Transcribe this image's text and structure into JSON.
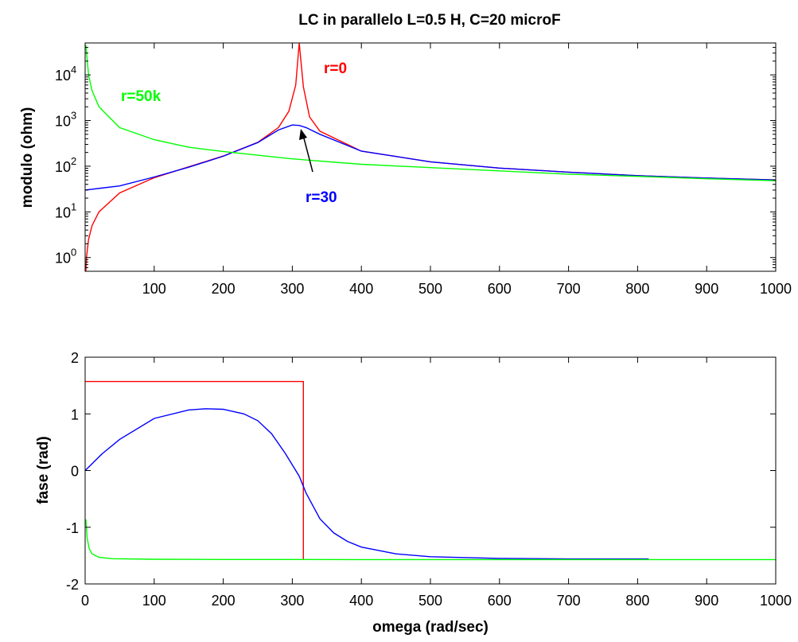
{
  "figure": {
    "title": "LC in parallelo L=0.5 H, C=20 microF"
  },
  "chart_data": [
    {
      "type": "line",
      "title": "LC in parallelo L=0.5 H, C=20 microF",
      "xlabel": "",
      "ylabel": "modulo (ohm)",
      "xlim": [
        0,
        1000
      ],
      "yscale": "log",
      "ylim": [
        0.5,
        50000
      ],
      "xticks": [
        100,
        200,
        300,
        400,
        500,
        600,
        700,
        800,
        900,
        1000
      ],
      "yticks": [
        1,
        10,
        100,
        1000,
        10000
      ],
      "ytick_labels": [
        {
          "base": "10",
          "exp": "0"
        },
        {
          "base": "10",
          "exp": "1"
        },
        {
          "base": "10",
          "exp": "2"
        },
        {
          "base": "10",
          "exp": "3"
        },
        {
          "base": "10",
          "exp": "4"
        }
      ],
      "grid": false,
      "series": [
        {
          "name": "r=0",
          "color": "#ff0000",
          "x": [
            1,
            2,
            5,
            10,
            20,
            50,
            100,
            150,
            200,
            250,
            280,
            295,
            305,
            310,
            316,
            325,
            340,
            400,
            500,
            600,
            700,
            800,
            900,
            1000
          ],
          "y": [
            0.5,
            1,
            2.5,
            5,
            10,
            26,
            56,
            97,
            167,
            333,
            702,
            1600,
            6000,
            50000,
            5500,
            1200,
            585,
            214,
            125,
            91,
            74,
            62,
            55,
            50
          ]
        },
        {
          "name": "r=30",
          "color": "#0000ff",
          "x": [
            0,
            50,
            100,
            150,
            200,
            250,
            280,
            300,
            310,
            320,
            340,
            400,
            500,
            600,
            700,
            800,
            900,
            1000
          ],
          "y": [
            30,
            37,
            58,
            95,
            165,
            330,
            620,
            800,
            780,
            700,
            500,
            214,
            125,
            91,
            74,
            62,
            55,
            50
          ]
        },
        {
          "name": "r=50k",
          "color": "#00ff00",
          "x": [
            1,
            5,
            10,
            20,
            50,
            100,
            150,
            200,
            300,
            400,
            500,
            600,
            700,
            800,
            900,
            1000
          ],
          "y": [
            45000,
            10000,
            4500,
            2000,
            700,
            380,
            260,
            210,
            145,
            110,
            93,
            79,
            67,
            60,
            53,
            48
          ]
        }
      ],
      "annotations": [
        {
          "text": "r=0",
          "color": "#ff0000"
        },
        {
          "text": "r=50k",
          "color": "#00ff00"
        },
        {
          "text": "r=30",
          "color": "#0000ff",
          "arrow_to": {
            "x": 310,
            "y": 700
          }
        }
      ]
    },
    {
      "type": "line",
      "title": "",
      "xlabel": "omega (rad/sec)",
      "ylabel": "fase (rad)",
      "xlim": [
        0,
        1000
      ],
      "ylim": [
        -2,
        2
      ],
      "xticks": [
        0,
        100,
        200,
        300,
        400,
        500,
        600,
        700,
        800,
        900,
        1000
      ],
      "yticks": [
        -2,
        -1,
        0,
        1,
        2
      ],
      "grid": false,
      "series": [
        {
          "name": "r=0",
          "color": "#ff0000",
          "x": [
            0,
            316,
            316,
            316
          ],
          "y": [
            1.5708,
            1.5708,
            0,
            -1.5708
          ]
        },
        {
          "name": "r=30",
          "color": "#0000ff",
          "x": [
            0,
            25,
            50,
            100,
            150,
            175,
            200,
            230,
            250,
            270,
            290,
            300,
            310,
            320,
            340,
            360,
            380,
            400,
            450,
            500,
            600,
            700,
            816
          ],
          "y": [
            0,
            0.3,
            0.55,
            0.92,
            1.07,
            1.09,
            1.08,
            1.0,
            0.88,
            0.65,
            0.3,
            0.1,
            -0.1,
            -0.4,
            -0.85,
            -1.1,
            -1.25,
            -1.35,
            -1.47,
            -1.52,
            -1.55,
            -1.56,
            -1.56
          ]
        },
        {
          "name": "r=50k",
          "color": "#00ff00",
          "x": [
            1,
            3,
            6,
            10,
            20,
            40,
            100,
            200,
            400,
            600,
            800,
            1000
          ],
          "y": [
            -0.86,
            -1.2,
            -1.38,
            -1.47,
            -1.53,
            -1.555,
            -1.565,
            -1.569,
            -1.57,
            -1.5705,
            -1.5707,
            -1.5707
          ]
        }
      ]
    }
  ]
}
